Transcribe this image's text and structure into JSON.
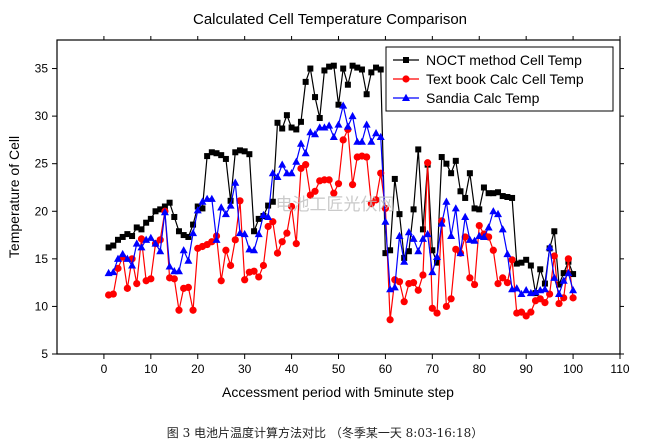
{
  "chart_data": {
    "type": "line",
    "title": "Calculated Cell Temperature Comparison",
    "xlabel": "Accessment period with 5minute step",
    "ylabel": "Temperature of Cell",
    "xlim": [
      -10,
      110
    ],
    "ylim": [
      5,
      38
    ],
    "xticks": [
      0,
      10,
      20,
      30,
      40,
      50,
      60,
      70,
      80,
      90,
      100,
      110
    ],
    "yticks": [
      5,
      10,
      15,
      20,
      25,
      30,
      35
    ],
    "legend_position": "top-right",
    "x": [
      1,
      2,
      3,
      4,
      5,
      6,
      7,
      8,
      9,
      10,
      11,
      12,
      13,
      14,
      15,
      16,
      17,
      18,
      19,
      20,
      21,
      22,
      23,
      24,
      25,
      26,
      27,
      28,
      29,
      30,
      31,
      32,
      33,
      34,
      35,
      36,
      37,
      38,
      39,
      40,
      41,
      42,
      43,
      44,
      45,
      46,
      47,
      48,
      49,
      50,
      51,
      52,
      53,
      54,
      55,
      56,
      57,
      58,
      59,
      60,
      61,
      62,
      63,
      64,
      65,
      66,
      67,
      68,
      69,
      70,
      71,
      72,
      73,
      74,
      75,
      76,
      77,
      78,
      79,
      80,
      81,
      82,
      83,
      84,
      85,
      86,
      87,
      88,
      89,
      90,
      91,
      92,
      93,
      94,
      95,
      96,
      97,
      98,
      99,
      100
    ],
    "series": [
      {
        "name": "NOCT method  Cell Temp",
        "color": "#000000",
        "marker": "square",
        "values": [
          16.2,
          16.4,
          17.0,
          17.3,
          17.6,
          17.4,
          18.3,
          18.1,
          18.8,
          19.2,
          20.0,
          20.2,
          20.5,
          20.9,
          19.4,
          17.9,
          17.5,
          17.3,
          18.6,
          20.5,
          20.3,
          25.8,
          26.2,
          26.1,
          25.9,
          25.5,
          21.1,
          26.2,
          26.4,
          26.3,
          26.0,
          17.9,
          19.2,
          19.5,
          20.6,
          21.0,
          29.3,
          28.7,
          30.1,
          28.8,
          28.6,
          29.4,
          33.6,
          35.0,
          32.0,
          29.8,
          34.8,
          35.2,
          35.3,
          31.2,
          35.0,
          33.3,
          35.3,
          35.1,
          34.9,
          32.3,
          34.6,
          35.1,
          34.9,
          15.6,
          15.9,
          23.4,
          19.7,
          15.1,
          15.8,
          20.2,
          26.5,
          18.1,
          24.9,
          15.9,
          14.6,
          25.7,
          25.0,
          24.0,
          25.3,
          22.1,
          21.4,
          24.0,
          20.3,
          20.2,
          22.5,
          21.9,
          21.9,
          22.0,
          21.6,
          21.5,
          21.4,
          14.5,
          14.6,
          14.9,
          14.3,
          11.4,
          13.9,
          12.4,
          16.1,
          17.9,
          12.3,
          13.5,
          14.7,
          13.4
        ]
      },
      {
        "name": "Text book Calc Cell Temp",
        "color": "#ff0000",
        "marker": "circle",
        "values": [
          11.2,
          11.3,
          14.0,
          15.2,
          11.9,
          15.0,
          12.4,
          17.1,
          12.7,
          12.9,
          16.6,
          17.0,
          20.0,
          13.0,
          12.9,
          9.6,
          11.9,
          12.0,
          9.6,
          16.1,
          16.3,
          16.5,
          16.8,
          17.4,
          12.7,
          15.9,
          14.3,
          17.0,
          21.1,
          12.8,
          13.6,
          13.7,
          13.1,
          14.3,
          18.4,
          18.9,
          15.6,
          16.8,
          17.7,
          20.5,
          16.6,
          24.5,
          24.9,
          21.7,
          22.1,
          23.2,
          23.3,
          23.3,
          21.9,
          22.9,
          27.5,
          28.6,
          22.8,
          25.7,
          25.8,
          25.7,
          20.8,
          21.2,
          24.0,
          20.3,
          8.6,
          12.8,
          12.6,
          10.5,
          12.4,
          12.5,
          11.7,
          13.3,
          25.1,
          9.8,
          9.3,
          19.0,
          10.0,
          10.8,
          16.0,
          15.6,
          17.3,
          13.0,
          12.3,
          18.5,
          17.6,
          17.3,
          15.9,
          12.4,
          13.0,
          12.5,
          14.9,
          9.3,
          9.4,
          9.0,
          9.4,
          10.6,
          10.8,
          10.4,
          11.3,
          15.3,
          10.3,
          10.9,
          15.0,
          10.9
        ]
      },
      {
        "name": "Sandia Calc Temp",
        "color": "#0000ff",
        "marker": "triangle",
        "values": [
          13.5,
          13.6,
          15.0,
          15.5,
          15.0,
          14.3,
          16.6,
          16.2,
          17.0,
          17.2,
          16.6,
          15.8,
          19.9,
          14.2,
          13.7,
          13.7,
          15.9,
          14.8,
          17.7,
          20.1,
          21.0,
          21.3,
          21.3,
          17.0,
          20.4,
          19.7,
          20.6,
          23.0,
          17.7,
          17.6,
          16.0,
          15.9,
          17.6,
          19.6,
          19.4,
          24.0,
          23.6,
          24.9,
          24.0,
          24.0,
          25.2,
          27.1,
          26.1,
          28.3,
          28.1,
          28.8,
          28.8,
          29.0,
          27.8,
          29.1,
          31.1,
          28.9,
          30.0,
          27.3,
          27.3,
          29.1,
          27.3,
          28.2,
          27.8,
          18.9,
          11.8,
          12.0,
          17.4,
          14.7,
          17.8,
          17.1,
          15.8,
          17.1,
          17.6,
          13.6,
          15.2,
          18.7,
          21.0,
          17.4,
          20.3,
          15.6,
          19.4,
          17.0,
          16.9,
          17.4,
          17.3,
          18.3,
          20.0,
          19.7,
          18.1,
          15.5,
          11.8,
          11.9,
          11.3,
          11.7,
          11.4,
          11.5,
          11.7,
          11.8,
          16.2,
          13.0,
          11.3,
          12.7,
          13.5,
          11.7
        ]
      }
    ]
  },
  "watermark": "电池工匠光伏网",
  "caption": "图 3  电池片温度计算方法对比 （冬季某一天 8:03-16:18）"
}
